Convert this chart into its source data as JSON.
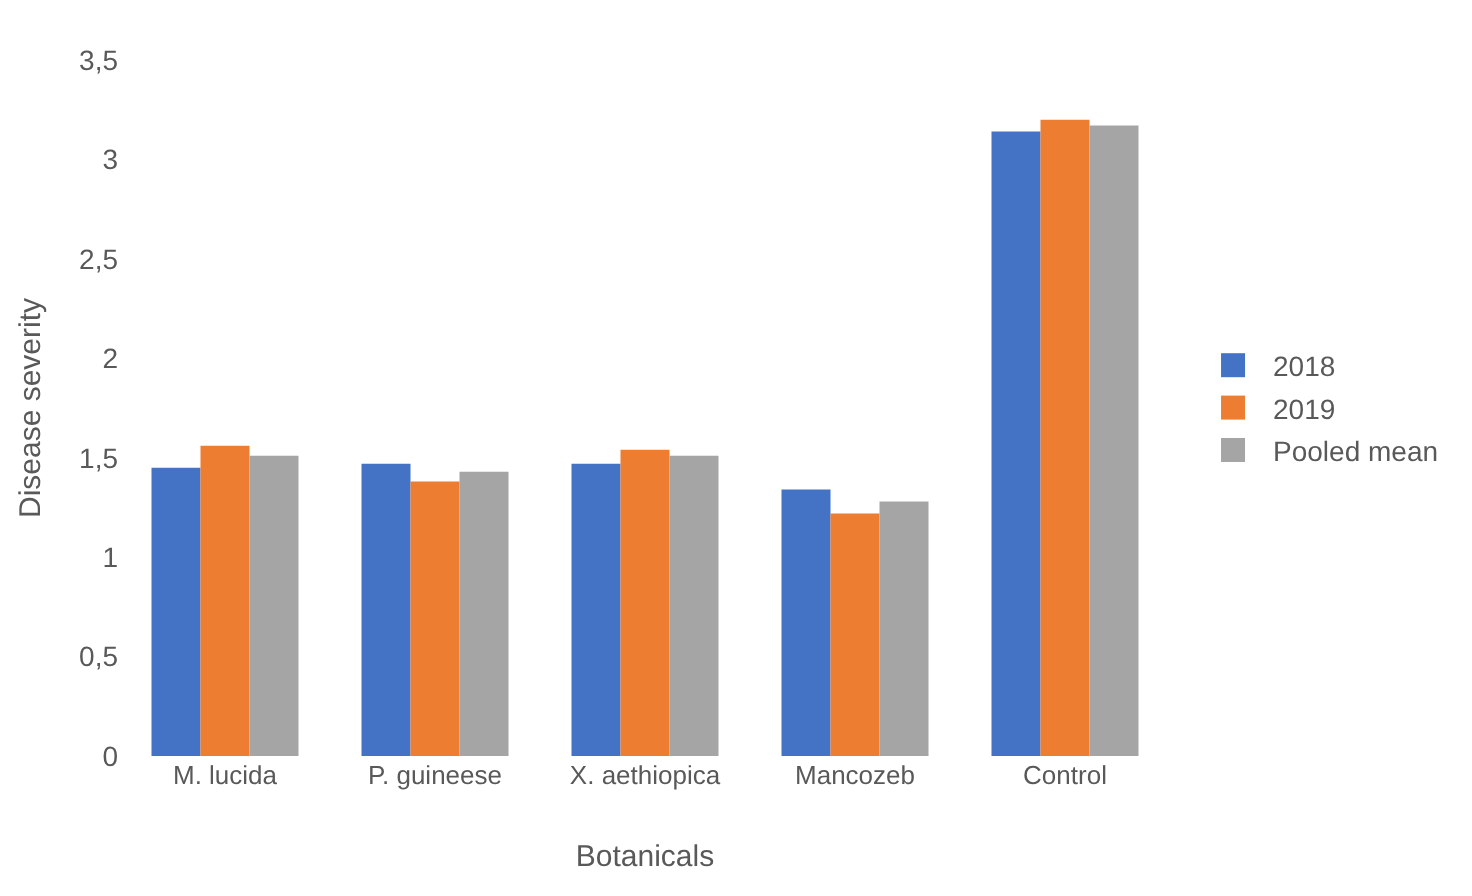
{
  "chart_data": {
    "type": "bar",
    "xlabel": "Botanicals",
    "ylabel": "Disease severity",
    "categories": [
      "M. lucida",
      "P. guineese",
      "X. aethiopica",
      "Mancozeb",
      "Control"
    ],
    "series": [
      {
        "name": "2018",
        "color": "#4472c4",
        "values": [
          1.45,
          1.47,
          1.47,
          1.34,
          3.14
        ]
      },
      {
        "name": "2019",
        "color": "#ed7d31",
        "values": [
          1.56,
          1.38,
          1.54,
          1.22,
          3.2
        ]
      },
      {
        "name": "Pooled mean",
        "color": "#a5a5a5",
        "values": [
          1.51,
          1.43,
          1.51,
          1.28,
          3.17
        ]
      }
    ],
    "ylim": [
      0,
      3.5
    ],
    "yticks": [
      0,
      {
        "value": 0.5,
        "label": "0,5"
      },
      1,
      {
        "value": 1.5,
        "label": "1,5"
      },
      2,
      {
        "value": 2.5,
        "label": "2,5"
      },
      3,
      {
        "value": 3.5,
        "label": "3,5"
      }
    ],
    "grid": false,
    "legend": "right"
  }
}
